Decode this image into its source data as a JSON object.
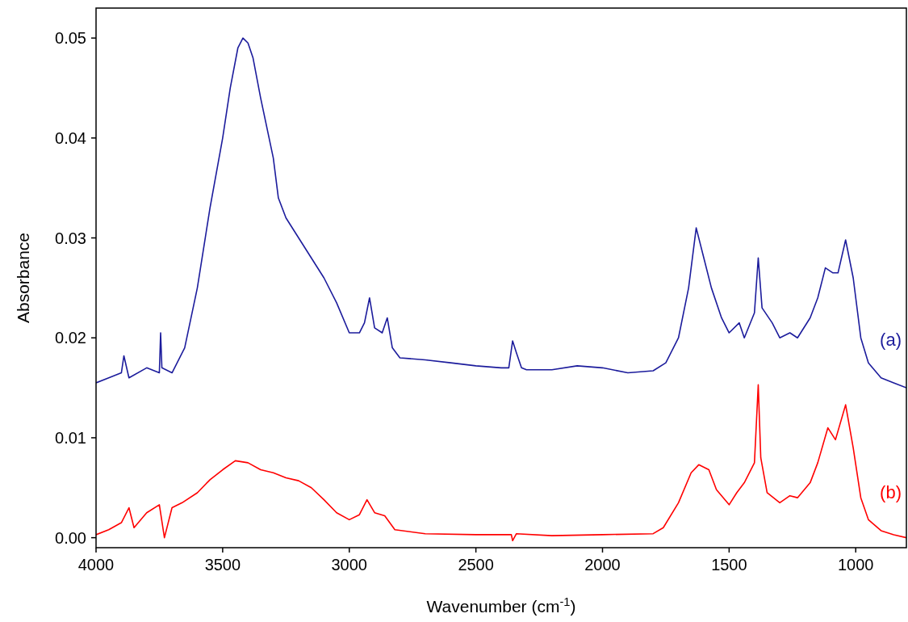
{
  "chart_data": {
    "type": "line",
    "xlabel": "Wavenumber (cm$^{-1}$)",
    "ylabel": "Absorbance",
    "xlim": [
      4000,
      800
    ],
    "ylim": [
      -0.001,
      0.053
    ],
    "xticks": [
      4000,
      3500,
      3000,
      2500,
      2000,
      1500,
      1000
    ],
    "yticks": [
      {
        "value": 0,
        "label": "0.00"
      },
      0.01,
      0.02,
      0.03,
      0.04,
      0.05
    ],
    "grid": false,
    "legend": false,
    "marker": "none",
    "line_style": "solid",
    "series": [
      {
        "name": "(a)",
        "color": "#1c1c9c",
        "x": [
          4000,
          3950,
          3900,
          3890,
          3870,
          3800,
          3750,
          3745,
          3740,
          3700,
          3650,
          3600,
          3550,
          3500,
          3470,
          3440,
          3420,
          3400,
          3380,
          3350,
          3300,
          3280,
          3250,
          3200,
          3150,
          3100,
          3050,
          3000,
          2960,
          2940,
          2920,
          2900,
          2870,
          2850,
          2830,
          2800,
          2700,
          2600,
          2500,
          2400,
          2370,
          2355,
          2340,
          2320,
          2300,
          2200,
          2100,
          2000,
          1900,
          1800,
          1750,
          1700,
          1660,
          1630,
          1600,
          1570,
          1530,
          1500,
          1460,
          1440,
          1400,
          1385,
          1370,
          1330,
          1300,
          1260,
          1230,
          1180,
          1150,
          1120,
          1090,
          1070,
          1040,
          1010,
          980,
          950,
          900,
          850,
          800
        ],
        "values": [
          0.0155,
          0.016,
          0.0165,
          0.0182,
          0.016,
          0.017,
          0.0165,
          0.0205,
          0.017,
          0.0165,
          0.019,
          0.025,
          0.033,
          0.04,
          0.045,
          0.049,
          0.05,
          0.0495,
          0.048,
          0.044,
          0.038,
          0.034,
          0.032,
          0.03,
          0.028,
          0.026,
          0.0235,
          0.0205,
          0.0205,
          0.0215,
          0.024,
          0.021,
          0.0205,
          0.022,
          0.019,
          0.018,
          0.0178,
          0.0175,
          0.0172,
          0.017,
          0.017,
          0.0197,
          0.0185,
          0.017,
          0.0168,
          0.0168,
          0.0172,
          0.017,
          0.0165,
          0.0167,
          0.0175,
          0.02,
          0.025,
          0.031,
          0.028,
          0.025,
          0.022,
          0.0205,
          0.0215,
          0.02,
          0.0225,
          0.028,
          0.023,
          0.0215,
          0.02,
          0.0205,
          0.02,
          0.022,
          0.024,
          0.027,
          0.0265,
          0.0265,
          0.0298,
          0.026,
          0.02,
          0.0175,
          0.016,
          0.0155,
          0.015
        ]
      },
      {
        "name": "(b)",
        "color": "#ff0000",
        "x": [
          4000,
          3950,
          3900,
          3870,
          3850,
          3800,
          3750,
          3730,
          3700,
          3660,
          3600,
          3550,
          3500,
          3450,
          3400,
          3350,
          3300,
          3250,
          3200,
          3150,
          3100,
          3050,
          3000,
          2960,
          2930,
          2900,
          2860,
          2820,
          2700,
          2500,
          2360,
          2355,
          2340,
          2200,
          2000,
          1800,
          1760,
          1700,
          1650,
          1620,
          1580,
          1550,
          1500,
          1470,
          1440,
          1400,
          1385,
          1375,
          1350,
          1300,
          1260,
          1230,
          1180,
          1150,
          1110,
          1080,
          1040,
          1010,
          980,
          950,
          900,
          850,
          800
        ],
        "values": [
          0.0003,
          0.0008,
          0.0015,
          0.003,
          0.001,
          0.0025,
          0.0033,
          0.0,
          0.003,
          0.0035,
          0.0045,
          0.0058,
          0.0068,
          0.0077,
          0.0075,
          0.0068,
          0.0065,
          0.006,
          0.0057,
          0.005,
          0.0038,
          0.0025,
          0.0018,
          0.0023,
          0.0038,
          0.0025,
          0.0022,
          0.0008,
          0.0004,
          0.0003,
          0.0003,
          -0.0003,
          0.0004,
          0.0002,
          0.0003,
          0.0004,
          0.001,
          0.0035,
          0.0065,
          0.0073,
          0.0068,
          0.0048,
          0.0033,
          0.0045,
          0.0055,
          0.0075,
          0.0153,
          0.008,
          0.0045,
          0.0035,
          0.0042,
          0.004,
          0.0055,
          0.0075,
          0.011,
          0.0098,
          0.0133,
          0.009,
          0.004,
          0.0018,
          0.0007,
          0.0003,
          0.0
        ]
      }
    ]
  }
}
